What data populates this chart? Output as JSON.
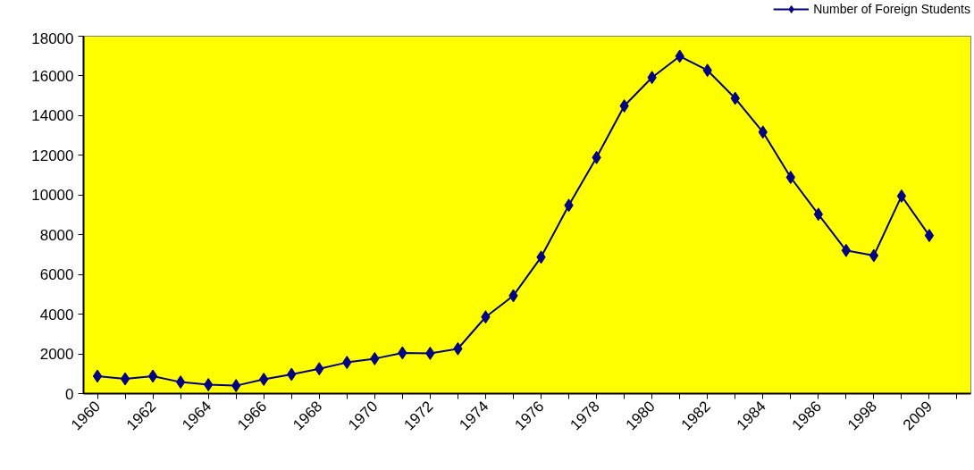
{
  "chart_data": {
    "type": "line",
    "categories": [
      "1960",
      null,
      "1962",
      null,
      "1964",
      null,
      "1966",
      null,
      "1968",
      null,
      "1970",
      null,
      "1972",
      null,
      "1974",
      null,
      "1976",
      null,
      "1978",
      null,
      "1980",
      null,
      "1982",
      null,
      "1984",
      null,
      "1986",
      null,
      "1998",
      null,
      "2009",
      null
    ],
    "series": [
      {
        "name": "Number of Foreign Students",
        "color": "#000080",
        "values": [
          880,
          740,
          880,
          580,
          450,
          400,
          720,
          970,
          1250,
          1570,
          1760,
          2050,
          2030,
          2260,
          3860,
          4930,
          6870,
          9480,
          11890,
          14490,
          15920,
          16990,
          16280,
          14870,
          13170,
          10890,
          9030,
          7210,
          6950,
          9950,
          7960,
          null
        ]
      }
    ],
    "ylim": [
      0,
      18000
    ],
    "yticks": [
      0,
      2000,
      4000,
      6000,
      8000,
      10000,
      12000,
      14000,
      16000,
      18000
    ],
    "grid": false,
    "legend": "top right",
    "marker": "diamond",
    "line_style": "solid"
  }
}
